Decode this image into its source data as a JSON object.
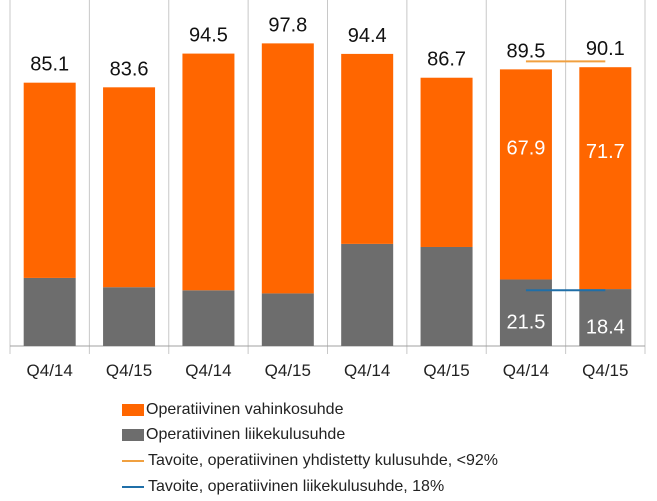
{
  "chart_data": {
    "type": "bar",
    "stacked": true,
    "categories": [
      "Q4/14",
      "Q4/15",
      "Q4/14",
      "Q4/15",
      "Q4/14",
      "Q4/15",
      "Q4/14",
      "Q4/15"
    ],
    "series": [
      {
        "name": "Operatiivinen liikekulusuhde",
        "color": "#6d6d6d",
        "values": [
          22.0,
          19.0,
          18.0,
          17.0,
          33.0,
          32.0,
          21.5,
          18.4
        ]
      },
      {
        "name": "Operatiivinen vahinkosuhde",
        "color": "#ff6600",
        "values": [
          63.1,
          64.6,
          76.5,
          80.8,
          61.4,
          54.7,
          67.9,
          71.7
        ]
      }
    ],
    "totals": [
      "85.1",
      "83.6",
      "94.5",
      "97.8",
      "94.4",
      "86.7",
      "89.5",
      "90.1"
    ],
    "segment_labels": [
      {
        "index": 6,
        "series": 1,
        "text": "67.9"
      },
      {
        "index": 7,
        "series": 1,
        "text": "71.7"
      },
      {
        "index": 6,
        "series": 0,
        "text": "21.5"
      },
      {
        "index": 7,
        "series": 0,
        "text": "18.4"
      }
    ],
    "target_lines": [
      {
        "name": "Tavoite, operatiivinen yhdistetty kulusuhde, <92%",
        "value": 92,
        "color": "#f0a040",
        "from_index": 6,
        "to_index": 7
      },
      {
        "name": "Tavoite, operatiivinen liikekulusuhde, 18%",
        "value": 18,
        "color": "#1f6fa8",
        "from_index": 6,
        "to_index": 7
      }
    ],
    "ylim": [
      0,
      105
    ],
    "grid": "vertical separators",
    "legend_position": "bottom"
  },
  "legend": {
    "items": [
      {
        "label": "Operatiivinen vahinkosuhde",
        "color": "#ff6600",
        "kind": "box"
      },
      {
        "label": "Operatiivinen liikekulusuhde",
        "color": "#6d6d6d",
        "kind": "box"
      },
      {
        "label": "Tavoite, operatiivinen yhdistetty kulusuhde, <92%",
        "color": "#f0a040",
        "kind": "line"
      },
      {
        "label": "Tavoite, operatiivinen liikekulusuhde, 18%",
        "color": "#1f6fa8",
        "kind": "line"
      }
    ]
  }
}
